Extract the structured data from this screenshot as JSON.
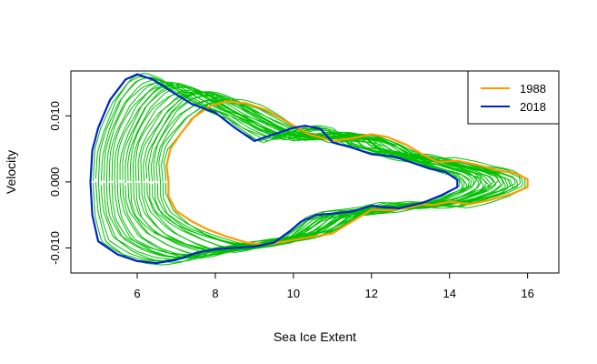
{
  "chart_data": {
    "type": "line",
    "title": "",
    "xlabel": "Sea Ice Extent",
    "ylabel": "Velocity",
    "xlim": [
      4.3,
      16.8
    ],
    "ylim": [
      -0.0138,
      0.0168
    ],
    "x_ticks": [
      {
        "value": 6,
        "label": "6"
      },
      {
        "value": 8,
        "label": "8"
      },
      {
        "value": 10,
        "label": "10"
      },
      {
        "value": 12,
        "label": "12"
      },
      {
        "value": 14,
        "label": "14"
      },
      {
        "value": 16,
        "label": "16"
      }
    ],
    "y_ticks": [
      {
        "value": -0.01,
        "label": "-0.010"
      },
      {
        "value": 0.0,
        "label": "0.000"
      },
      {
        "value": 0.01,
        "label": "0.010"
      }
    ],
    "grid": false,
    "legend_position": "top-right",
    "background_curves": {
      "description": "family of green curves for intermediate years",
      "color": "#00c000",
      "count": 28
    },
    "zero_line": {
      "color": "#ffffff",
      "style": "dashed",
      "x_range": [
        4.8,
        6.9
      ]
    },
    "series": [
      {
        "name": "1988",
        "color": "#ff9900",
        "points": [
          [
            6.8,
            0.0
          ],
          [
            6.75,
            0.0025
          ],
          [
            6.85,
            0.005
          ],
          [
            7.1,
            0.0072
          ],
          [
            7.45,
            0.0098
          ],
          [
            7.9,
            0.0116
          ],
          [
            8.3,
            0.0122
          ],
          [
            8.8,
            0.0119
          ],
          [
            9.3,
            0.0109
          ],
          [
            9.8,
            0.0092
          ],
          [
            10.4,
            0.0072
          ],
          [
            11.0,
            0.0062
          ],
          [
            11.5,
            0.0066
          ],
          [
            12.0,
            0.0072
          ],
          [
            12.4,
            0.0068
          ],
          [
            12.9,
            0.0056
          ],
          [
            13.3,
            0.0042
          ],
          [
            13.7,
            0.003
          ],
          [
            14.2,
            0.0032
          ],
          [
            14.7,
            0.0026
          ],
          [
            15.2,
            0.0018
          ],
          [
            15.7,
            0.0013
          ],
          [
            16.0,
            0.0004
          ],
          [
            16.0,
            -0.0008
          ],
          [
            15.6,
            -0.0018
          ],
          [
            15.0,
            -0.0028
          ],
          [
            14.5,
            -0.0034
          ],
          [
            14.0,
            -0.003
          ],
          [
            13.6,
            -0.0035
          ],
          [
            13.3,
            -0.0034
          ],
          [
            12.9,
            -0.004
          ],
          [
            12.4,
            -0.0043
          ],
          [
            12.0,
            -0.0042
          ],
          [
            11.5,
            -0.006
          ],
          [
            11.0,
            -0.0078
          ],
          [
            10.4,
            -0.0084
          ],
          [
            9.8,
            -0.009
          ],
          [
            9.3,
            -0.0095
          ],
          [
            8.8,
            -0.0092
          ],
          [
            8.3,
            -0.0083
          ],
          [
            7.8,
            -0.0072
          ],
          [
            7.4,
            -0.006
          ],
          [
            7.0,
            -0.0044
          ],
          [
            6.8,
            -0.0022
          ],
          [
            6.8,
            0.0
          ]
        ]
      },
      {
        "name": "2018",
        "color": "#0022cc",
        "points": [
          [
            4.8,
            0.0
          ],
          [
            4.85,
            0.0048
          ],
          [
            5.0,
            0.0082
          ],
          [
            5.3,
            0.0124
          ],
          [
            5.7,
            0.0155
          ],
          [
            6.0,
            0.0163
          ],
          [
            6.4,
            0.0155
          ],
          [
            6.9,
            0.0136
          ],
          [
            7.4,
            0.0118
          ],
          [
            8.0,
            0.0105
          ],
          [
            8.5,
            0.0082
          ],
          [
            9.0,
            0.0062
          ],
          [
            9.5,
            0.0072
          ],
          [
            10.0,
            0.0082
          ],
          [
            10.3,
            0.0085
          ],
          [
            10.7,
            0.008
          ],
          [
            11.0,
            0.006
          ],
          [
            11.5,
            0.0052
          ],
          [
            12.0,
            0.0042
          ],
          [
            12.6,
            0.0038
          ],
          [
            13.0,
            0.003
          ],
          [
            13.5,
            0.002
          ],
          [
            13.9,
            0.0015
          ],
          [
            14.2,
            0.0003
          ],
          [
            14.2,
            -0.0008
          ],
          [
            13.8,
            -0.002
          ],
          [
            13.3,
            -0.0032
          ],
          [
            12.7,
            -0.004
          ],
          [
            12.3,
            -0.0038
          ],
          [
            12.0,
            -0.0036
          ],
          [
            11.5,
            -0.0045
          ],
          [
            11.0,
            -0.0048
          ],
          [
            10.6,
            -0.005
          ],
          [
            10.2,
            -0.006
          ],
          [
            9.9,
            -0.0075
          ],
          [
            9.5,
            -0.0092
          ],
          [
            9.0,
            -0.0098
          ],
          [
            8.5,
            -0.01
          ],
          [
            8.0,
            -0.0102
          ],
          [
            7.5,
            -0.0108
          ],
          [
            7.0,
            -0.0118
          ],
          [
            6.5,
            -0.0123
          ],
          [
            6.0,
            -0.012
          ],
          [
            5.5,
            -0.011
          ],
          [
            5.0,
            -0.009
          ],
          [
            4.85,
            -0.005
          ],
          [
            4.8,
            0.0
          ]
        ]
      }
    ]
  }
}
